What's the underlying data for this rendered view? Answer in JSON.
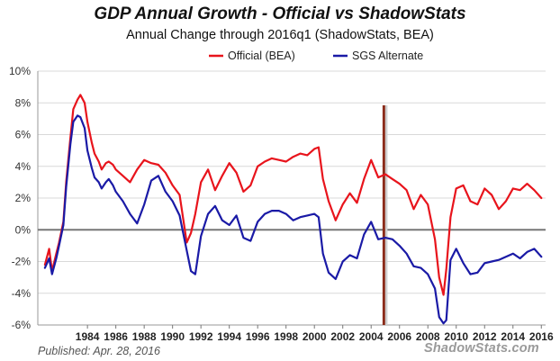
{
  "page": {
    "published": "Published: Apr. 28, 2016",
    "watermark": "ShadowStats.com"
  },
  "colors": {
    "official": "#e8141c",
    "alternate": "#1a1aa6",
    "zero_line": "#777777",
    "marker": "#8b2c1a",
    "grid": "#d9d9d9"
  },
  "chart_data": {
    "type": "line",
    "title": "GDP Annual Growth - Official vs ShadowStats",
    "subtitle": "Annual Change through 2016q1  (ShadowStats, BEA)",
    "xlabel": "",
    "ylabel": "",
    "xlim": [
      1980.5,
      2016.3
    ],
    "ylim": [
      -6,
      10
    ],
    "y_ticks": [
      -6,
      -4,
      -2,
      0,
      2,
      4,
      6,
      8,
      10
    ],
    "y_tick_labels": [
      "-6%",
      "-4%",
      "-2%",
      "0%",
      "2%",
      "4%",
      "6%",
      "8%",
      "10%"
    ],
    "x_ticks": [
      1984,
      1986,
      1988,
      1990,
      1992,
      1994,
      1996,
      1998,
      2000,
      2002,
      2004,
      2006,
      2008,
      2010,
      2012,
      2014,
      2016
    ],
    "x_tick_labels": [
      "1984",
      "1986",
      "1988",
      "1990",
      "1992",
      "1994",
      "1996",
      "1998",
      "2000",
      "2002",
      "2004",
      "2006",
      "2008",
      "2010",
      "2012",
      "2014",
      "2016"
    ],
    "grid": "horizontal",
    "legend_position": "top-center",
    "marker_year": 2004.9,
    "series": [
      {
        "name": "Official (BEA)",
        "color": "#e8141c",
        "x": [
          1981.0,
          1981.3,
          1981.5,
          1981.8,
          1982.0,
          1982.3,
          1982.5,
          1982.8,
          1983.0,
          1983.3,
          1983.5,
          1983.8,
          1984.0,
          1984.3,
          1984.5,
          1984.8,
          1985.0,
          1985.3,
          1985.5,
          1985.8,
          1986.0,
          1986.5,
          1987.0,
          1987.5,
          1988.0,
          1988.5,
          1989.0,
          1989.5,
          1990.0,
          1990.5,
          1991.0,
          1991.3,
          1991.6,
          1992.0,
          1992.5,
          1993.0,
          1993.5,
          1994.0,
          1994.5,
          1995.0,
          1995.5,
          1996.0,
          1996.5,
          1997.0,
          1997.5,
          1998.0,
          1998.5,
          1999.0,
          1999.5,
          2000.0,
          2000.3,
          2000.6,
          2001.0,
          2001.5,
          2002.0,
          2002.5,
          2003.0,
          2003.5,
          2004.0,
          2004.5,
          2005.0,
          2005.5,
          2006.0,
          2006.5,
          2007.0,
          2007.5,
          2008.0,
          2008.5,
          2008.8,
          2009.1,
          2009.3,
          2009.6,
          2010.0,
          2010.5,
          2011.0,
          2011.5,
          2012.0,
          2012.5,
          2013.0,
          2013.5,
          2014.0,
          2014.5,
          2015.0,
          2015.5,
          2016.0
        ],
        "values": [
          -2.2,
          -1.2,
          -2.6,
          -1.5,
          -0.8,
          0.5,
          3.0,
          5.8,
          7.6,
          8.2,
          8.5,
          8.0,
          6.8,
          5.5,
          4.8,
          4.3,
          3.8,
          4.2,
          4.3,
          4.1,
          3.8,
          3.4,
          3.0,
          3.8,
          4.4,
          4.2,
          4.1,
          3.6,
          2.8,
          2.2,
          -0.8,
          -0.2,
          1.0,
          3.0,
          3.8,
          2.5,
          3.4,
          4.2,
          3.6,
          2.4,
          2.8,
          4.0,
          4.3,
          4.5,
          4.4,
          4.3,
          4.6,
          4.8,
          4.7,
          5.1,
          5.2,
          3.2,
          1.8,
          0.6,
          1.6,
          2.3,
          1.7,
          3.2,
          4.4,
          3.3,
          3.5,
          3.2,
          2.9,
          2.5,
          1.3,
          2.2,
          1.6,
          -0.6,
          -3.0,
          -4.1,
          -2.5,
          0.8,
          2.6,
          2.8,
          1.8,
          1.6,
          2.6,
          2.2,
          1.3,
          1.8,
          2.6,
          2.5,
          2.9,
          2.5,
          2.0
        ]
      },
      {
        "name": "SGS Alternate",
        "color": "#1a1aa6",
        "x": [
          1981.0,
          1981.3,
          1981.5,
          1981.8,
          1982.0,
          1982.3,
          1982.5,
          1982.8,
          1983.0,
          1983.3,
          1983.5,
          1983.8,
          1984.0,
          1984.3,
          1984.5,
          1984.8,
          1985.0,
          1985.3,
          1985.5,
          1985.8,
          1986.0,
          1986.5,
          1987.0,
          1987.5,
          1988.0,
          1988.5,
          1989.0,
          1989.5,
          1990.0,
          1990.5,
          1991.0,
          1991.3,
          1991.6,
          1992.0,
          1992.5,
          1993.0,
          1993.5,
          1994.0,
          1994.5,
          1995.0,
          1995.5,
          1996.0,
          1996.5,
          1997.0,
          1997.5,
          1998.0,
          1998.5,
          1999.0,
          1999.5,
          2000.0,
          2000.3,
          2000.6,
          2001.0,
          2001.5,
          2002.0,
          2002.5,
          2003.0,
          2003.5,
          2004.0,
          2004.5,
          2005.0,
          2005.5,
          2006.0,
          2006.5,
          2007.0,
          2007.5,
          2008.0,
          2008.5,
          2008.8,
          2009.1,
          2009.3,
          2009.6,
          2010.0,
          2010.5,
          2011.0,
          2011.5,
          2012.0,
          2012.5,
          2013.0,
          2013.5,
          2014.0,
          2014.5,
          2015.0,
          2015.5,
          2016.0
        ],
        "values": [
          -2.4,
          -1.8,
          -2.8,
          -1.8,
          -1.0,
          0.3,
          2.7,
          5.4,
          6.8,
          7.2,
          7.1,
          6.4,
          5.0,
          3.9,
          3.3,
          3.0,
          2.6,
          3.0,
          3.2,
          2.8,
          2.4,
          1.8,
          1.0,
          0.4,
          1.6,
          3.1,
          3.4,
          2.4,
          1.8,
          0.9,
          -1.3,
          -2.6,
          -2.8,
          -0.4,
          1.0,
          1.5,
          0.6,
          0.3,
          0.9,
          -0.5,
          -0.7,
          0.5,
          1.0,
          1.2,
          1.2,
          1.0,
          0.6,
          0.8,
          0.9,
          1.0,
          0.8,
          -1.5,
          -2.7,
          -3.1,
          -2.0,
          -1.6,
          -1.8,
          -0.3,
          0.5,
          -0.6,
          -0.5,
          -0.6,
          -1.0,
          -1.5,
          -2.3,
          -2.4,
          -2.8,
          -3.7,
          -5.5,
          -5.9,
          -5.7,
          -1.9,
          -1.2,
          -2.1,
          -2.8,
          -2.7,
          -2.1,
          -2.0,
          -1.9,
          -1.7,
          -1.5,
          -1.8,
          -1.4,
          -1.2,
          -1.7
        ]
      }
    ]
  }
}
